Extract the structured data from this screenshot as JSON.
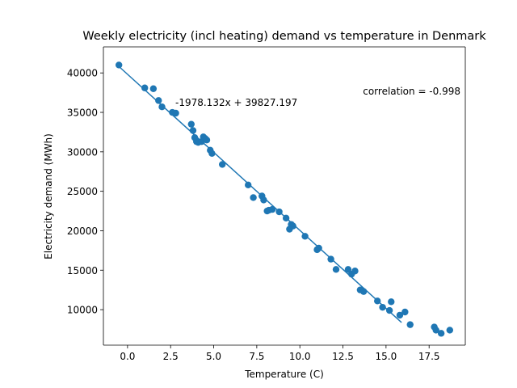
{
  "chart_data": {
    "type": "scatter",
    "title": "Weekly electricity (incl heating) demand vs temperature in Denmark",
    "xlabel": "Temperature (C)",
    "ylabel": "Electricity demand (MWh)",
    "xlim": [
      -1.4,
      19.6
    ],
    "ylim": [
      5500,
      43300
    ],
    "xticks": [
      0.0,
      2.5,
      5.0,
      7.5,
      10.0,
      12.5,
      15.0,
      17.5
    ],
    "xtick_labels": [
      "0.0",
      "2.5",
      "5.0",
      "7.5",
      "10.0",
      "12.5",
      "15.0",
      "17.5"
    ],
    "yticks": [
      10000,
      15000,
      20000,
      25000,
      30000,
      35000,
      40000
    ],
    "ytick_labels": [
      "10000",
      "15000",
      "20000",
      "25000",
      "30000",
      "35000",
      "40000"
    ],
    "grid": false,
    "color": "#1f77b4",
    "series": [
      {
        "points": [
          [
            -0.5,
            41000
          ],
          [
            1.0,
            38100
          ],
          [
            1.5,
            38000
          ],
          [
            1.8,
            36500
          ],
          [
            2.0,
            35700
          ],
          [
            2.6,
            35000
          ],
          [
            2.8,
            34900
          ],
          [
            3.7,
            33500
          ],
          [
            3.8,
            32700
          ],
          [
            3.9,
            31800
          ],
          [
            4.0,
            31300
          ],
          [
            4.1,
            31200
          ],
          [
            4.3,
            31300
          ],
          [
            4.4,
            31900
          ],
          [
            4.5,
            31700
          ],
          [
            4.6,
            31500
          ],
          [
            4.8,
            30200
          ],
          [
            4.9,
            29800
          ],
          [
            5.5,
            28400
          ],
          [
            7.0,
            25800
          ],
          [
            7.3,
            24200
          ],
          [
            7.8,
            24400
          ],
          [
            7.9,
            23900
          ],
          [
            8.1,
            22500
          ],
          [
            8.2,
            22600
          ],
          [
            8.4,
            22700
          ],
          [
            8.8,
            22400
          ],
          [
            9.2,
            21600
          ],
          [
            9.4,
            20200
          ],
          [
            9.5,
            20800
          ],
          [
            9.6,
            20600
          ],
          [
            10.3,
            19300
          ],
          [
            11.0,
            17600
          ],
          [
            11.1,
            17800
          ],
          [
            11.8,
            16400
          ],
          [
            12.1,
            15100
          ],
          [
            12.8,
            15100
          ],
          [
            13.0,
            14500
          ],
          [
            13.2,
            14900
          ],
          [
            13.5,
            12500
          ],
          [
            13.7,
            12300
          ],
          [
            14.5,
            11100
          ],
          [
            14.8,
            10300
          ],
          [
            15.2,
            9900
          ],
          [
            15.3,
            11000
          ],
          [
            15.8,
            9300
          ],
          [
            16.1,
            9700
          ],
          [
            16.4,
            8100
          ],
          [
            17.8,
            7800
          ],
          [
            17.9,
            7400
          ],
          [
            18.2,
            7000
          ],
          [
            18.7,
            7400
          ]
        ]
      }
    ],
    "trendline": {
      "slope": -1978.132,
      "intercept": 39827.197,
      "x_range": [
        -0.5,
        15.9
      ]
    },
    "annotations": {
      "equation": "-1978.132x + 39827.197",
      "correlation": "correlation = -0.998"
    }
  }
}
